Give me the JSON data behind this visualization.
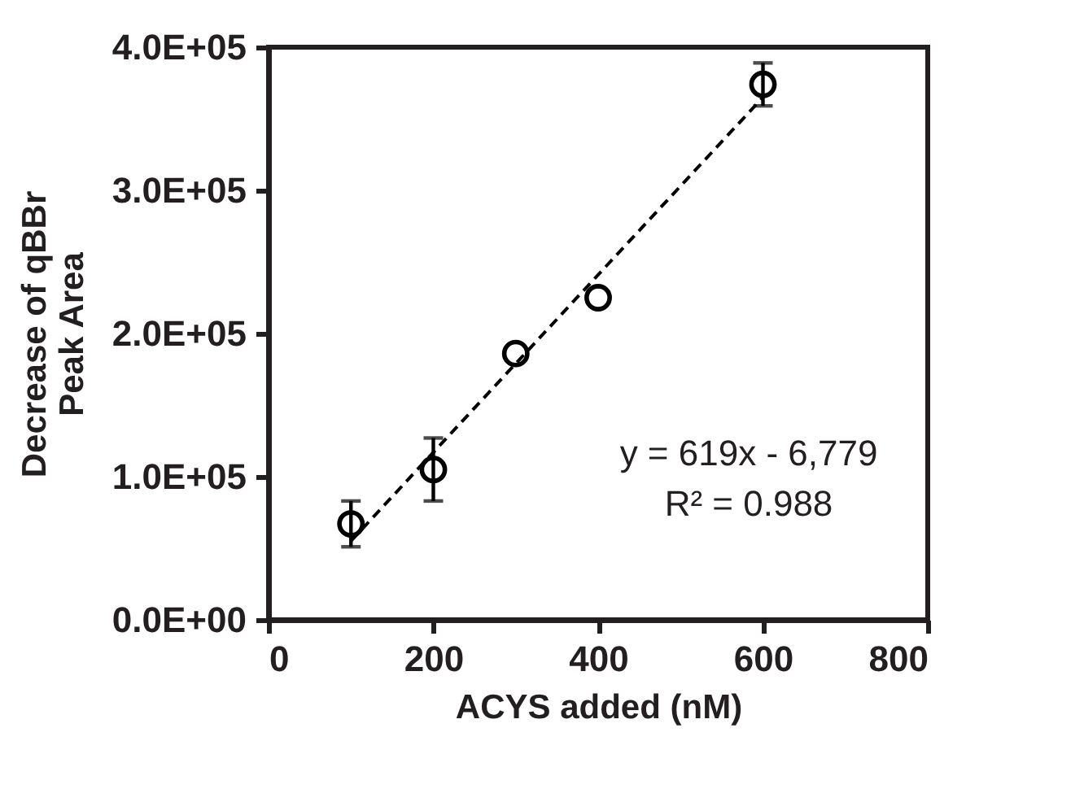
{
  "chart_data": {
    "type": "scatter",
    "xlabel": "ACYS added (nM)",
    "ylabel": "Decrease of qBBr\nPeak Area",
    "x": [
      100,
      200,
      300,
      400,
      600
    ],
    "series": [
      {
        "color": "#000000",
        "marker": "circle",
        "values": [
          67000,
          105000,
          186000,
          225000,
          374000
        ],
        "errors": [
          16000,
          22000,
          null,
          null,
          15000
        ]
      },
      {
        "type": "line",
        "color": "#000000",
        "line_style": "dashed",
        "x": [
          100,
          600
        ],
        "values": [
          55000,
          365000
        ]
      }
    ],
    "xlim": [
      0,
      800
    ],
    "xticks": [
      0,
      200,
      400,
      600,
      800
    ],
    "ylim": [
      0,
      400000
    ],
    "yticks": [
      {
        "value": 0,
        "label": "0.0E+00"
      },
      {
        "value": 100000,
        "label": "1.0E+05"
      },
      {
        "value": 200000,
        "label": "2.0E+05"
      },
      {
        "value": 300000,
        "label": "3.0E+05"
      },
      {
        "value": 400000,
        "label": "4.0E+05"
      }
    ],
    "grid": false,
    "annotations": [
      "y = 619x - 6,779",
      "R² = 0.988"
    ]
  }
}
